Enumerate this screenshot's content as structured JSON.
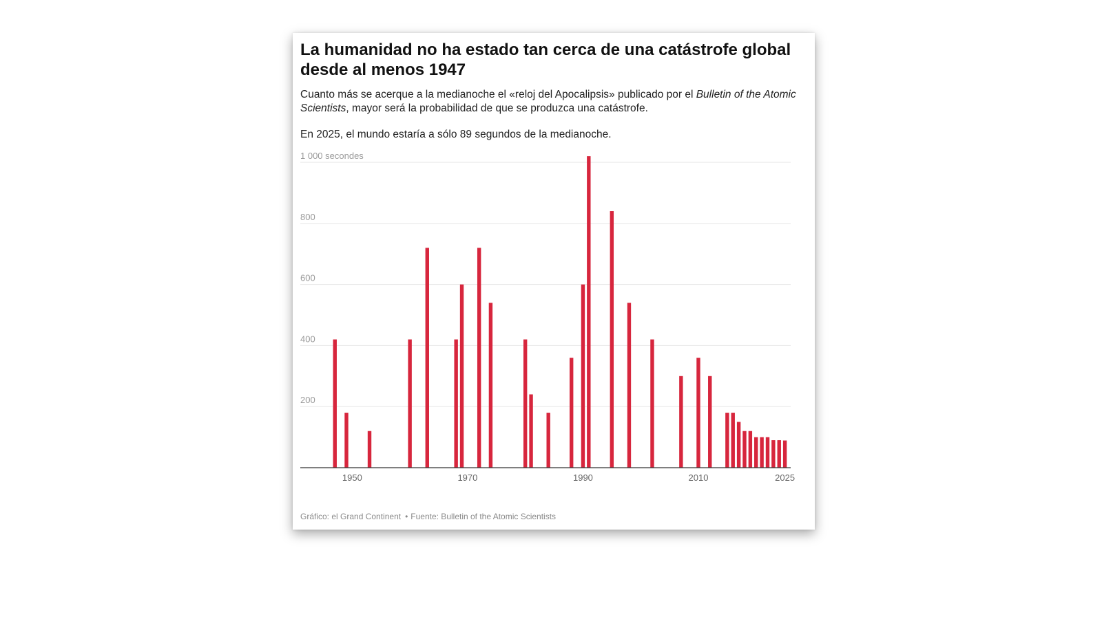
{
  "title": "La humanidad no ha estado tan cerca de una catástrofe global desde al menos 1947",
  "subtitle": {
    "part1": "Cuanto más se acerque a la medianoche el «reloj del Apocalipsis» publicado por el ",
    "italic": "Bulletin of the Atomic Scientists",
    "part2": ", mayor será la probabilidad de que se produzca una catástrofe."
  },
  "note": "En 2025, el mundo estaría a sólo 89 segundos de la medianoche.",
  "footer": {
    "credit": "Gráfico: el Grand Continent",
    "source": "Fuente: Bulletin of the Atomic Scientists"
  },
  "colors": {
    "bar": "#d7263d",
    "grid": "#e6e6e6",
    "axis": "#333333"
  },
  "chart_data": {
    "type": "bar",
    "title": "",
    "xlabel": "",
    "ylabel": "",
    "y_unit_label": "1 000 secondes",
    "ylim": [
      0,
      1000
    ],
    "yticks": [
      200,
      400,
      600,
      800,
      1000
    ],
    "ytick_labels": [
      "200",
      "400",
      "600",
      "800",
      "1 000 secondes"
    ],
    "xlim": [
      1941,
      2026
    ],
    "xticks": [
      1950,
      1970,
      1990,
      2010,
      2025
    ],
    "xtick_labels": [
      "1950",
      "1970",
      "1990",
      "2010",
      "2025"
    ],
    "grid": true,
    "series": [
      {
        "points": [
          {
            "x": 1947,
            "y": 420
          },
          {
            "x": 1949,
            "y": 180
          },
          {
            "x": 1953,
            "y": 120
          },
          {
            "x": 1960,
            "y": 420
          },
          {
            "x": 1963,
            "y": 720
          },
          {
            "x": 1968,
            "y": 420
          },
          {
            "x": 1969,
            "y": 600
          },
          {
            "x": 1972,
            "y": 720
          },
          {
            "x": 1974,
            "y": 540
          },
          {
            "x": 1980,
            "y": 420
          },
          {
            "x": 1981,
            "y": 240
          },
          {
            "x": 1984,
            "y": 180
          },
          {
            "x": 1988,
            "y": 360
          },
          {
            "x": 1990,
            "y": 600
          },
          {
            "x": 1991,
            "y": 1020
          },
          {
            "x": 1995,
            "y": 840
          },
          {
            "x": 1998,
            "y": 540
          },
          {
            "x": 2002,
            "y": 420
          },
          {
            "x": 2007,
            "y": 300
          },
          {
            "x": 2010,
            "y": 360
          },
          {
            "x": 2012,
            "y": 300
          },
          {
            "x": 2015,
            "y": 180
          },
          {
            "x": 2016,
            "y": 180
          },
          {
            "x": 2017,
            "y": 150
          },
          {
            "x": 2018,
            "y": 120
          },
          {
            "x": 2019,
            "y": 120
          },
          {
            "x": 2020,
            "y": 100
          },
          {
            "x": 2021,
            "y": 100
          },
          {
            "x": 2022,
            "y": 100
          },
          {
            "x": 2023,
            "y": 90
          },
          {
            "x": 2024,
            "y": 90
          },
          {
            "x": 2025,
            "y": 89
          }
        ]
      }
    ]
  }
}
